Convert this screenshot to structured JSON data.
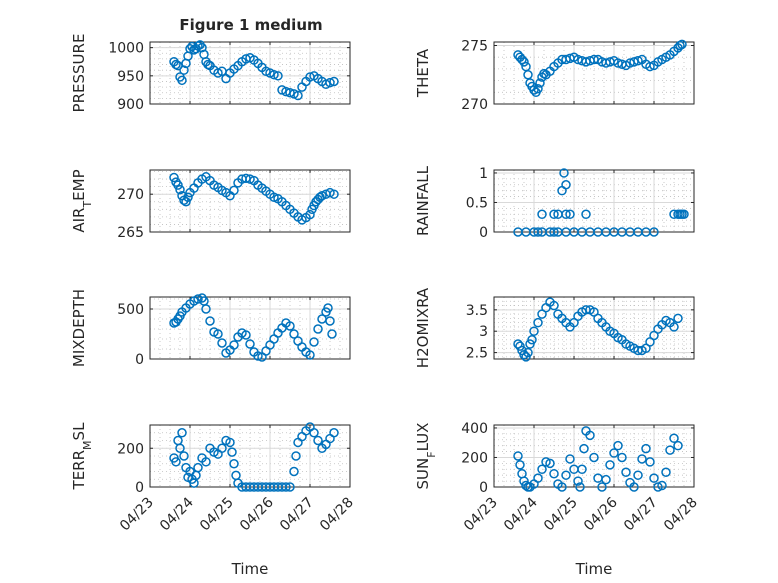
{
  "figure": {
    "title": "Figure 1 medium"
  },
  "chart_data": [
    {
      "type": "scatter",
      "ylabel": "PRESSURE",
      "ylim": [
        900,
        1010
      ],
      "yticks": [
        900,
        950,
        1000
      ],
      "xlim": [
        0,
        5
      ],
      "marker_color": "#0072bd",
      "grid": true,
      "x": [
        0.6,
        0.65,
        0.7,
        0.75,
        0.8,
        0.85,
        0.9,
        0.95,
        1.0,
        1.05,
        1.1,
        1.15,
        1.2,
        1.25,
        1.3,
        1.35,
        1.4,
        1.45,
        1.5,
        1.6,
        1.7,
        1.8,
        1.9,
        2.0,
        2.1,
        2.2,
        2.3,
        2.4,
        2.5,
        2.6,
        2.7,
        2.8,
        2.9,
        3.0,
        3.1,
        3.2,
        3.3,
        3.4,
        3.5,
        3.6,
        3.7,
        3.8,
        3.9,
        4.0,
        4.1,
        4.2,
        4.3,
        4.4,
        4.5,
        4.6
      ],
      "y": [
        975,
        970,
        968,
        948,
        942,
        960,
        972,
        985,
        998,
        1002,
        996,
        998,
        1003,
        1005,
        1000,
        988,
        975,
        970,
        968,
        960,
        955,
        958,
        945,
        955,
        962,
        968,
        975,
        980,
        982,
        978,
        972,
        965,
        958,
        955,
        952,
        950,
        925,
        922,
        920,
        918,
        915,
        930,
        940,
        948,
        950,
        945,
        940,
        935,
        938,
        940
      ]
    },
    {
      "type": "scatter",
      "ylabel": "THETA",
      "ylim": [
        270,
        275.3
      ],
      "yticks": [
        270,
        275
      ],
      "xlim": [
        0,
        5
      ],
      "marker_color": "#0072bd",
      "grid": true,
      "x": [
        0.6,
        0.65,
        0.7,
        0.75,
        0.8,
        0.85,
        0.9,
        0.95,
        1.0,
        1.05,
        1.1,
        1.15,
        1.2,
        1.25,
        1.3,
        1.4,
        1.5,
        1.6,
        1.7,
        1.8,
        1.9,
        2.0,
        2.1,
        2.2,
        2.3,
        2.4,
        2.5,
        2.6,
        2.7,
        2.8,
        2.9,
        3.0,
        3.1,
        3.2,
        3.3,
        3.4,
        3.5,
        3.6,
        3.7,
        3.8,
        3.9,
        4.0,
        4.1,
        4.2,
        4.3,
        4.4,
        4.5,
        4.6,
        4.65,
        4.7
      ],
      "y": [
        274.2,
        274.0,
        273.8,
        273.6,
        273.2,
        272.5,
        271.8,
        271.5,
        271.2,
        271.0,
        271.3,
        271.8,
        272.3,
        272.6,
        272.5,
        272.8,
        273.2,
        273.5,
        273.8,
        273.8,
        273.9,
        274.0,
        273.8,
        273.7,
        273.6,
        273.7,
        273.8,
        273.8,
        273.6,
        273.5,
        273.6,
        273.7,
        273.5,
        273.4,
        273.3,
        273.5,
        273.6,
        273.7,
        273.8,
        273.4,
        273.2,
        273.3,
        273.6,
        273.8,
        274.0,
        274.2,
        274.5,
        274.8,
        275.0,
        275.1
      ]
    },
    {
      "type": "scatter",
      "ylabel": "AIR_TEMP",
      "ylim": [
        265,
        273.2
      ],
      "yticks": [
        265,
        270
      ],
      "xlim": [
        0,
        5
      ],
      "marker_color": "#0072bd",
      "grid": true,
      "x": [
        0.6,
        0.65,
        0.7,
        0.75,
        0.8,
        0.85,
        0.9,
        0.95,
        1.0,
        1.1,
        1.2,
        1.3,
        1.4,
        1.5,
        1.6,
        1.7,
        1.8,
        1.9,
        2.0,
        2.1,
        2.2,
        2.3,
        2.4,
        2.5,
        2.6,
        2.7,
        2.8,
        2.9,
        3.0,
        3.1,
        3.2,
        3.3,
        3.4,
        3.5,
        3.6,
        3.7,
        3.8,
        3.9,
        4.0,
        4.05,
        4.1,
        4.15,
        4.2,
        4.25,
        4.3,
        4.4,
        4.5,
        4.6
      ],
      "y": [
        272.2,
        271.6,
        271.2,
        270.6,
        269.8,
        269.2,
        269.0,
        269.6,
        270.2,
        270.8,
        271.5,
        272.0,
        272.3,
        271.8,
        271.2,
        270.9,
        270.5,
        270.2,
        269.8,
        270.5,
        271.5,
        272.0,
        272.1,
        272.0,
        271.8,
        271.2,
        270.8,
        270.4,
        270.0,
        269.6,
        269.4,
        269.0,
        268.5,
        268.0,
        267.5,
        267.0,
        266.6,
        266.9,
        267.3,
        268.0,
        268.5,
        269.0,
        269.3,
        269.6,
        269.8,
        270.0,
        270.2,
        270.0
      ]
    },
    {
      "type": "scatter",
      "ylabel": "RAINFALL",
      "ylim": [
        0,
        1.05
      ],
      "yticks": [
        0,
        0.5,
        1
      ],
      "xlim": [
        0,
        5
      ],
      "marker_color": "#0072bd",
      "grid": true,
      "x": [
        0.6,
        0.8,
        1.0,
        1.1,
        1.2,
        1.4,
        1.5,
        1.6,
        1.8,
        2.0,
        2.2,
        2.4,
        2.6,
        2.8,
        3.0,
        3.2,
        3.4,
        3.6,
        3.8,
        4.0,
        1.2,
        1.5,
        1.6,
        1.7,
        1.8,
        1.75,
        1.8,
        1.9,
        2.3,
        4.5,
        4.6,
        4.65,
        4.7,
        4.75
      ],
      "y": [
        0,
        0,
        0,
        0,
        0,
        0,
        0,
        0,
        0,
        0,
        0,
        0,
        0,
        0,
        0,
        0,
        0,
        0,
        0,
        0,
        0.3,
        0.3,
        0.3,
        0.7,
        0.3,
        1.0,
        0.8,
        0.3,
        0.3,
        0.3,
        0.3,
        0.3,
        0.3,
        0.3
      ]
    },
    {
      "type": "scatter",
      "ylabel": "MIXDEPTH",
      "ylim": [
        0,
        620
      ],
      "yticks": [
        0,
        500
      ],
      "xlim": [
        0,
        5
      ],
      "marker_color": "#0072bd",
      "grid": true,
      "x": [
        0.6,
        0.65,
        0.7,
        0.75,
        0.8,
        0.9,
        1.0,
        1.1,
        1.2,
        1.3,
        1.35,
        1.4,
        1.5,
        1.6,
        1.7,
        1.8,
        1.9,
        2.0,
        2.1,
        2.2,
        2.3,
        2.4,
        2.5,
        2.6,
        2.7,
        2.8,
        2.9,
        3.0,
        3.1,
        3.2,
        3.3,
        3.4,
        3.5,
        3.6,
        3.7,
        3.8,
        3.9,
        4.0,
        4.1,
        4.2,
        4.3,
        4.4,
        4.45,
        4.5,
        4.55
      ],
      "y": [
        360,
        370,
        400,
        430,
        470,
        510,
        550,
        580,
        600,
        610,
        580,
        500,
        380,
        270,
        250,
        160,
        60,
        90,
        140,
        220,
        260,
        240,
        150,
        70,
        30,
        20,
        80,
        140,
        200,
        260,
        310,
        360,
        330,
        250,
        180,
        120,
        70,
        40,
        170,
        300,
        400,
        470,
        510,
        380,
        250
      ]
    },
    {
      "type": "scatter",
      "ylabel": "H2OMIXRA",
      "ylim": [
        2.35,
        3.8
      ],
      "yticks": [
        2.5,
        3,
        3.5
      ],
      "xlim": [
        0,
        5
      ],
      "marker_color": "#0072bd",
      "grid": true,
      "x": [
        0.6,
        0.65,
        0.7,
        0.75,
        0.8,
        0.85,
        0.9,
        0.95,
        1.0,
        1.1,
        1.2,
        1.3,
        1.4,
        1.5,
        1.6,
        1.7,
        1.8,
        1.9,
        2.0,
        2.1,
        2.2,
        2.3,
        2.4,
        2.5,
        2.6,
        2.7,
        2.8,
        2.9,
        3.0,
        3.1,
        3.2,
        3.3,
        3.4,
        3.5,
        3.6,
        3.7,
        3.8,
        3.9,
        4.0,
        4.1,
        4.2,
        4.3,
        4.4,
        4.5,
        4.6
      ],
      "y": [
        2.7,
        2.65,
        2.55,
        2.45,
        2.4,
        2.5,
        2.7,
        2.8,
        3.0,
        3.2,
        3.4,
        3.55,
        3.68,
        3.6,
        3.4,
        3.3,
        3.2,
        3.1,
        3.2,
        3.35,
        3.45,
        3.5,
        3.5,
        3.45,
        3.3,
        3.2,
        3.1,
        3.0,
        2.95,
        2.85,
        2.8,
        2.7,
        2.65,
        2.6,
        2.55,
        2.55,
        2.6,
        2.75,
        2.9,
        3.05,
        3.15,
        3.25,
        3.2,
        3.1,
        3.3
      ]
    },
    {
      "type": "scatter",
      "ylabel": "TERR_MSL",
      "ylim": [
        0,
        320
      ],
      "yticks": [
        0,
        200
      ],
      "xlim": [
        0,
        5
      ],
      "marker_color": "#0072bd",
      "grid": true,
      "x": [
        0.6,
        0.65,
        0.7,
        0.75,
        0.8,
        0.85,
        0.9,
        0.95,
        1.0,
        1.05,
        1.1,
        1.15,
        1.2,
        1.3,
        1.4,
        1.5,
        1.6,
        1.7,
        1.8,
        1.9,
        2.0,
        2.05,
        2.1,
        2.15,
        2.2,
        2.3,
        2.4,
        2.5,
        2.6,
        2.7,
        2.8,
        2.9,
        3.0,
        3.1,
        3.2,
        3.3,
        3.4,
        3.5,
        3.6,
        3.65,
        3.7,
        3.8,
        3.9,
        4.0,
        4.1,
        4.2,
        4.3,
        4.4,
        4.5,
        4.6
      ],
      "y": [
        150,
        130,
        240,
        200,
        280,
        160,
        100,
        50,
        80,
        40,
        20,
        60,
        100,
        150,
        130,
        200,
        180,
        170,
        200,
        240,
        230,
        180,
        120,
        60,
        20,
        0,
        0,
        0,
        0,
        0,
        0,
        0,
        0,
        0,
        0,
        0,
        0,
        0,
        80,
        160,
        230,
        260,
        290,
        310,
        280,
        240,
        200,
        220,
        250,
        280
      ]
    },
    {
      "type": "scatter",
      "ylabel": "SUN_FLUX",
      "ylim": [
        0,
        420
      ],
      "yticks": [
        0,
        200,
        400
      ],
      "xlim": [
        0,
        5
      ],
      "marker_color": "#0072bd",
      "grid": true,
      "x": [
        0.6,
        0.65,
        0.7,
        0.75,
        0.8,
        0.85,
        0.9,
        1.0,
        1.1,
        1.2,
        1.3,
        1.4,
        1.5,
        1.6,
        1.7,
        1.8,
        1.9,
        2.0,
        2.1,
        2.15,
        2.2,
        2.25,
        2.3,
        2.4,
        2.5,
        2.6,
        2.7,
        2.8,
        2.9,
        3.0,
        3.1,
        3.2,
        3.3,
        3.4,
        3.5,
        3.6,
        3.7,
        3.8,
        3.9,
        4.0,
        4.1,
        4.2,
        4.3,
        4.4,
        4.5,
        4.6
      ],
      "y": [
        210,
        150,
        90,
        40,
        10,
        0,
        0,
        20,
        60,
        120,
        170,
        160,
        90,
        20,
        0,
        80,
        190,
        120,
        40,
        0,
        120,
        260,
        380,
        350,
        200,
        60,
        0,
        50,
        150,
        230,
        280,
        200,
        100,
        30,
        0,
        80,
        190,
        260,
        170,
        60,
        0,
        10,
        100,
        250,
        330,
        280
      ]
    }
  ],
  "xaxis": {
    "ticks": [
      0,
      1,
      2,
      3,
      4,
      5
    ],
    "tick_labels": [
      "04/23",
      "04/24",
      "04/25",
      "04/26",
      "04/27",
      "04/28"
    ],
    "label": "Time"
  }
}
